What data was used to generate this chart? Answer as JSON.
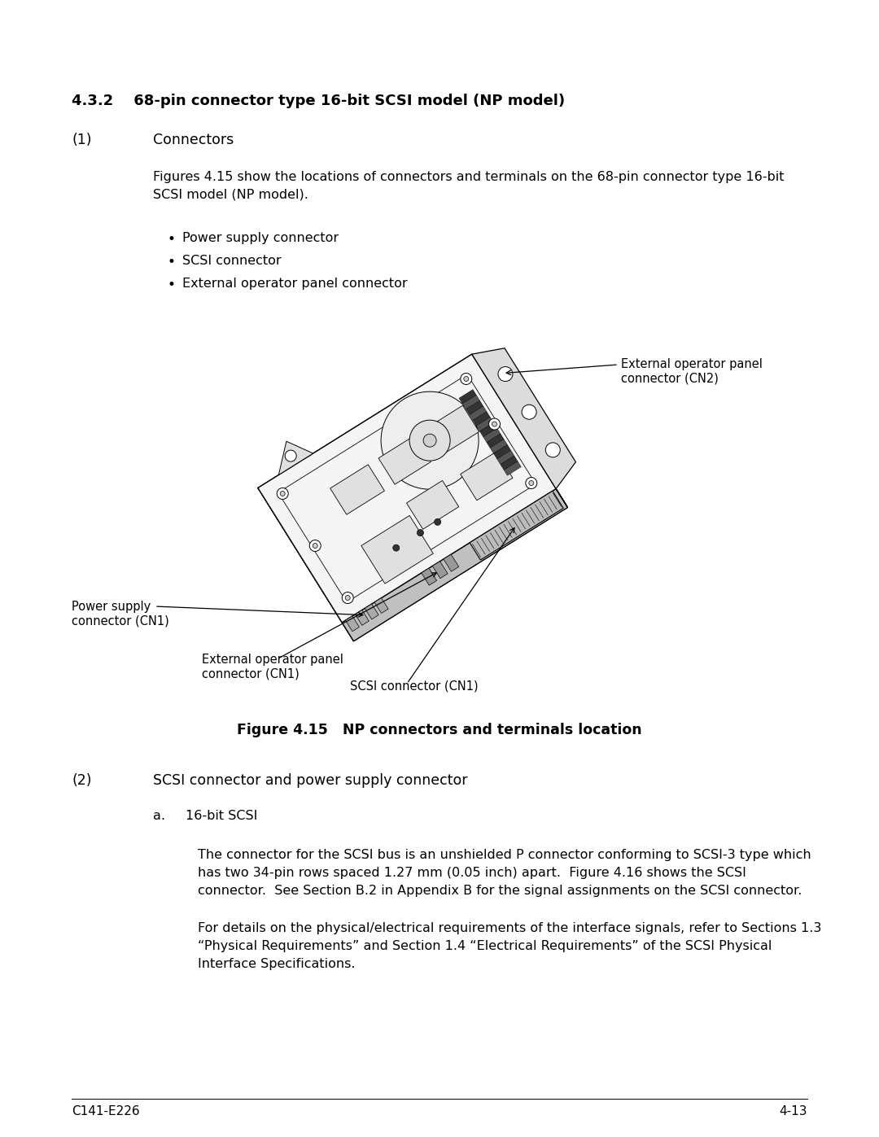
{
  "title_section": "4.3.2    68-pin connector type 16-bit SCSI model (NP model)",
  "sub1_label": "(1)",
  "sub1_text": "Connectors",
  "para1_line1": "Figures 4.15 show the locations of connectors and terminals on the 68-pin connector type 16-bit",
  "para1_line2": "SCSI model (NP model).",
  "bullets": [
    "Power supply connector",
    "SCSI connector",
    "External operator panel connector"
  ],
  "figure_caption_bold": "Figure 4.15   NP connectors and terminals location",
  "sub2_label": "(2)",
  "sub2_text": "SCSI connector and power supply connector",
  "sub2a_label": "a.",
  "sub2a_text": "16-bit SCSI",
  "para2_line1": "The connector for the SCSI bus is an unshielded P connector conforming to SCSI-3 type which",
  "para2_line2": "has two 34-pin rows spaced 1.27 mm (0.05 inch) apart.  Figure 4.16 shows the SCSI",
  "para2_line3": "connector.  See Section B.2 in Appendix B for the signal assignments on the SCSI connector.",
  "para3_line1": "For details on the physical/electrical requirements of the interface signals, refer to Sections 1.3",
  "para3_line2": "“Physical Requirements” and Section 1.4 “Electrical Requirements” of the SCSI Physical",
  "para3_line3": "Interface Specifications.",
  "footer_left": "C141-E226",
  "footer_right": "4-13",
  "bg_color": "#ffffff",
  "text_color": "#000000"
}
